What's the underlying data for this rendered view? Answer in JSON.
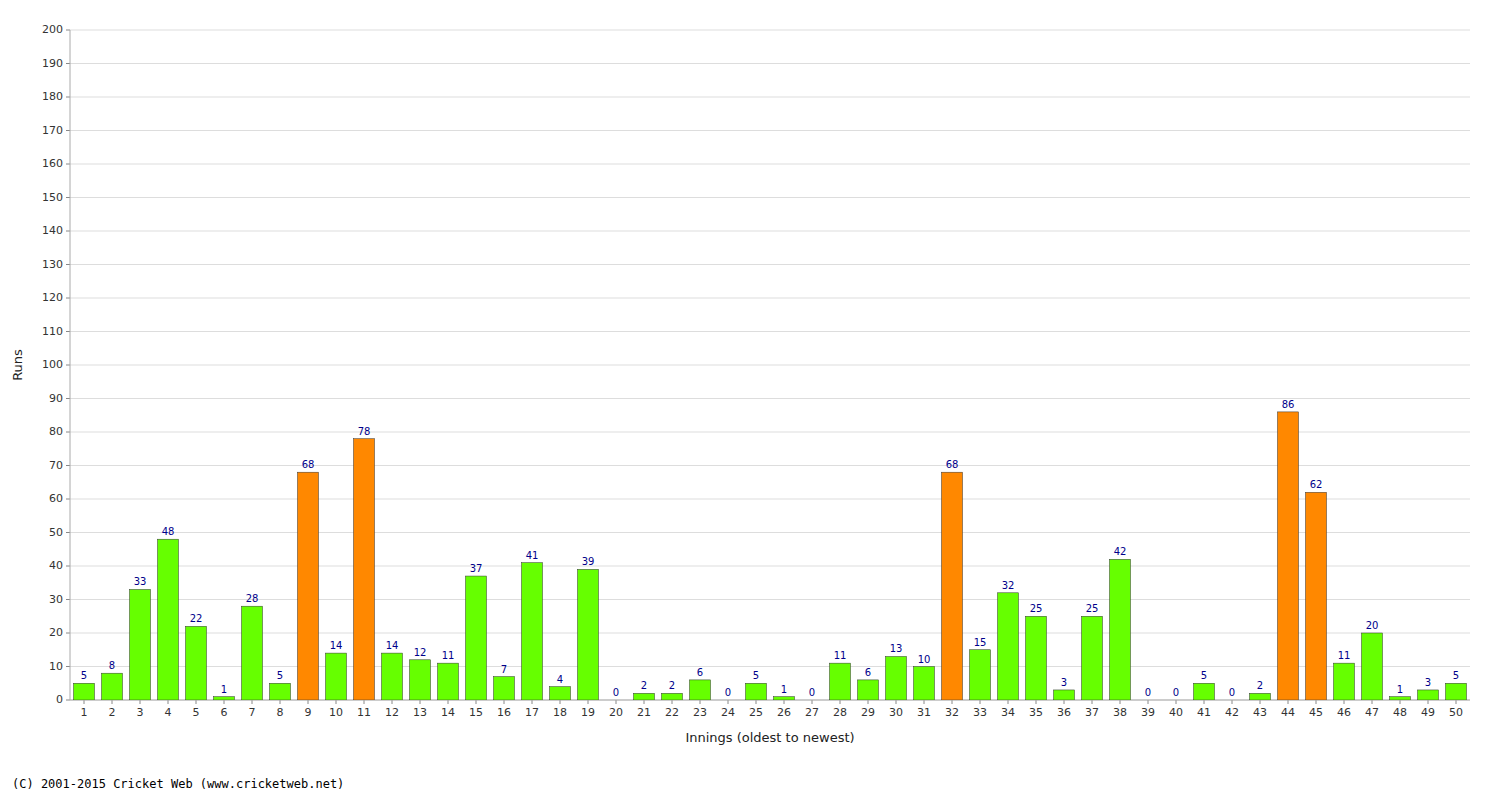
{
  "chart_data": {
    "type": "bar",
    "xlabel": "Innings (oldest to newest)",
    "ylabel": "Runs",
    "annotations": [
      "(C) 2001-2015 Cricket Web (www.cricketweb.net)"
    ],
    "categories": [
      1,
      2,
      3,
      4,
      5,
      6,
      7,
      8,
      9,
      10,
      11,
      12,
      13,
      14,
      15,
      16,
      17,
      18,
      19,
      20,
      21,
      22,
      23,
      24,
      25,
      26,
      27,
      28,
      29,
      30,
      31,
      32,
      33,
      34,
      35,
      36,
      37,
      38,
      39,
      40,
      41,
      42,
      43,
      44,
      45,
      46,
      47,
      48,
      49,
      50
    ],
    "values": [
      5,
      8,
      33,
      48,
      22,
      1,
      28,
      5,
      68,
      14,
      78,
      14,
      12,
      11,
      37,
      7,
      41,
      4,
      39,
      0,
      2,
      2,
      6,
      0,
      5,
      1,
      0,
      11,
      6,
      13,
      10,
      68,
      15,
      32,
      25,
      3,
      25,
      42,
      0,
      0,
      5,
      0,
      2,
      86,
      62,
      11,
      20,
      1,
      3,
      5
    ],
    "colors": [
      "#66ff00",
      "#66ff00",
      "#66ff00",
      "#66ff00",
      "#66ff00",
      "#66ff00",
      "#66ff00",
      "#66ff00",
      "#ff8800",
      "#66ff00",
      "#ff8800",
      "#66ff00",
      "#66ff00",
      "#66ff00",
      "#66ff00",
      "#66ff00",
      "#66ff00",
      "#66ff00",
      "#66ff00",
      "#66ff00",
      "#66ff00",
      "#66ff00",
      "#66ff00",
      "#66ff00",
      "#66ff00",
      "#66ff00",
      "#66ff00",
      "#66ff00",
      "#66ff00",
      "#66ff00",
      "#66ff00",
      "#ff8800",
      "#66ff00",
      "#66ff00",
      "#66ff00",
      "#66ff00",
      "#66ff00",
      "#66ff00",
      "#66ff00",
      "#66ff00",
      "#66ff00",
      "#66ff00",
      "#66ff00",
      "#ff8800",
      "#ff8800",
      "#66ff00",
      "#66ff00",
      "#66ff00",
      "#66ff00",
      "#66ff00"
    ],
    "ylim": [
      0,
      200
    ],
    "yticks": [
      0,
      10,
      20,
      30,
      40,
      50,
      60,
      70,
      80,
      90,
      100,
      110,
      120,
      130,
      140,
      150,
      160,
      170,
      180,
      190,
      200
    ],
    "grid": true,
    "data_labels": true
  }
}
